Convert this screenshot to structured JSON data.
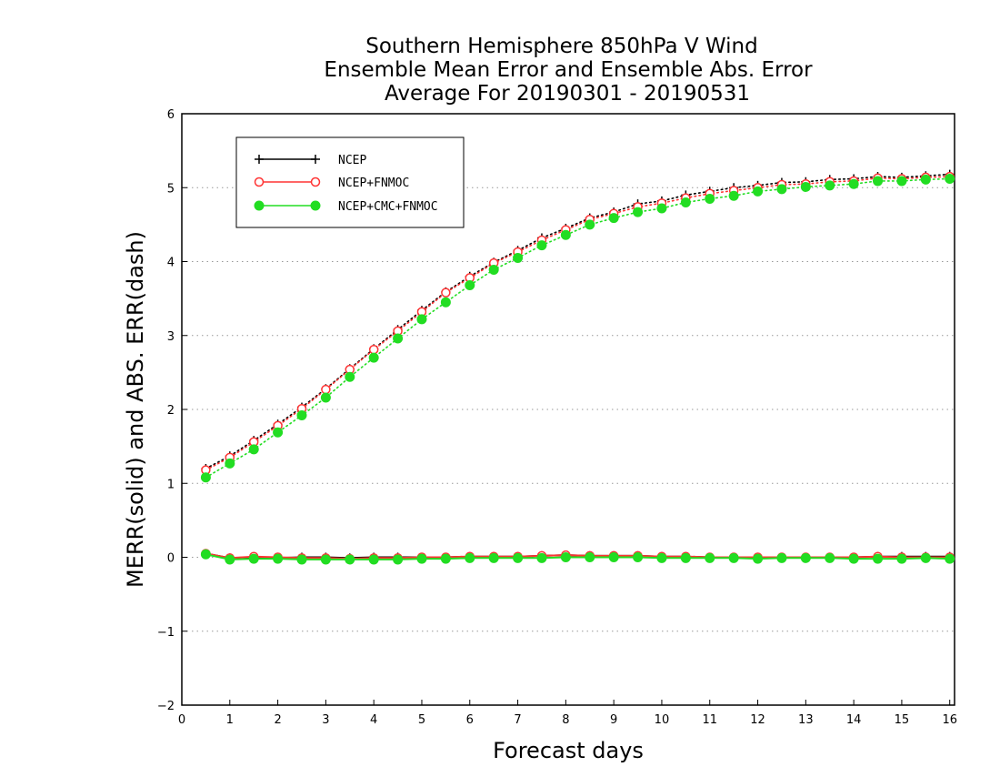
{
  "chart_data": {
    "type": "line",
    "title_lines": [
      "Southern Hemisphere 850hPa V Wind",
      "Ensemble Mean Error and Ensemble Abs. Error",
      "Average For 20190301 - 20190531"
    ],
    "xlabel": "Forecast days",
    "ylabel": "MERR(solid) and ABS. ERR(dash)",
    "xlim": [
      0,
      16.1
    ],
    "ylim": [
      -2,
      6
    ],
    "xticks": [
      0,
      1,
      2,
      3,
      4,
      5,
      6,
      7,
      8,
      9,
      10,
      11,
      12,
      13,
      14,
      15,
      16
    ],
    "xtick_labels": [
      "0",
      "1",
      "2",
      "3",
      "4",
      "5",
      "6",
      "7",
      "8",
      "9",
      "10",
      "11",
      "12",
      "13",
      "14",
      "15",
      "16"
    ],
    "yticks": [
      -2,
      -1,
      0,
      1,
      2,
      3,
      4,
      5,
      6
    ],
    "ytick_labels": [
      "−2",
      "−1",
      "0",
      "1",
      "2",
      "3",
      "4",
      "5",
      "6"
    ],
    "grid": "horizontal-dotted",
    "legend_position": "top-left",
    "x": [
      0.5,
      1,
      1.5,
      2,
      2.5,
      3,
      3.5,
      4,
      4.5,
      5,
      5.5,
      6,
      6.5,
      7,
      7.5,
      8,
      8.5,
      9,
      9.5,
      10,
      10.5,
      11,
      11.5,
      12,
      12.5,
      13,
      13.5,
      14,
      14.5,
      15,
      15.5,
      16
    ],
    "series": [
      {
        "name": "NCEP",
        "color": "#000000",
        "marker": "plus",
        "abs_err": [
          1.2,
          1.37,
          1.58,
          1.8,
          2.03,
          2.28,
          2.55,
          2.82,
          3.08,
          3.34,
          3.59,
          3.8,
          3.99,
          4.15,
          4.32,
          4.45,
          4.59,
          4.67,
          4.78,
          4.82,
          4.9,
          4.95,
          5.0,
          5.03,
          5.07,
          5.08,
          5.11,
          5.12,
          5.15,
          5.14,
          5.16,
          5.18
        ],
        "mean_err": [
          0.05,
          -0.01,
          0.0,
          -0.01,
          0.0,
          0.0,
          -0.01,
          0.0,
          0.0,
          0.0,
          0.0,
          0.01,
          0.01,
          0.01,
          0.02,
          0.03,
          0.02,
          0.02,
          0.02,
          0.01,
          0.01,
          0.0,
          0.0,
          0.0,
          0.0,
          0.0,
          0.0,
          0.0,
          0.01,
          0.01,
          0.01,
          0.01
        ]
      },
      {
        "name": "NCEP+FNMOC",
        "color": "#ff3333",
        "marker": "open-circle",
        "abs_err": [
          1.18,
          1.35,
          1.56,
          1.78,
          2.01,
          2.27,
          2.54,
          2.81,
          3.06,
          3.32,
          3.58,
          3.78,
          3.98,
          4.13,
          4.29,
          4.43,
          4.57,
          4.65,
          4.74,
          4.79,
          4.86,
          4.92,
          4.96,
          5.0,
          5.04,
          5.05,
          5.08,
          5.09,
          5.13,
          5.12,
          5.14,
          5.15
        ],
        "mean_err": [
          0.05,
          -0.01,
          0.01,
          0.0,
          -0.01,
          -0.01,
          -0.02,
          -0.01,
          -0.01,
          0.0,
          0.0,
          0.01,
          0.01,
          0.01,
          0.02,
          0.03,
          0.02,
          0.02,
          0.02,
          0.01,
          0.01,
          0.0,
          0.0,
          0.0,
          0.0,
          0.0,
          0.0,
          0.0,
          0.01,
          0.0,
          0.0,
          0.0
        ]
      },
      {
        "name": "NCEP+CMC+FNMOC",
        "color": "#22dd22",
        "marker": "filled-circle",
        "abs_err": [
          1.08,
          1.27,
          1.46,
          1.69,
          1.92,
          2.16,
          2.44,
          2.7,
          2.96,
          3.22,
          3.45,
          3.68,
          3.89,
          4.05,
          4.22,
          4.36,
          4.5,
          4.59,
          4.67,
          4.72,
          4.8,
          4.85,
          4.89,
          4.95,
          4.98,
          5.01,
          5.03,
          5.05,
          5.09,
          5.09,
          5.11,
          5.12
        ],
        "mean_err": [
          0.04,
          -0.03,
          -0.02,
          -0.02,
          -0.03,
          -0.03,
          -0.03,
          -0.03,
          -0.03,
          -0.02,
          -0.02,
          -0.01,
          -0.01,
          -0.01,
          -0.01,
          0.0,
          0.0,
          0.0,
          0.0,
          -0.01,
          -0.01,
          -0.01,
          -0.01,
          -0.02,
          -0.01,
          -0.01,
          -0.01,
          -0.02,
          -0.02,
          -0.02,
          -0.01,
          -0.02
        ]
      }
    ]
  }
}
